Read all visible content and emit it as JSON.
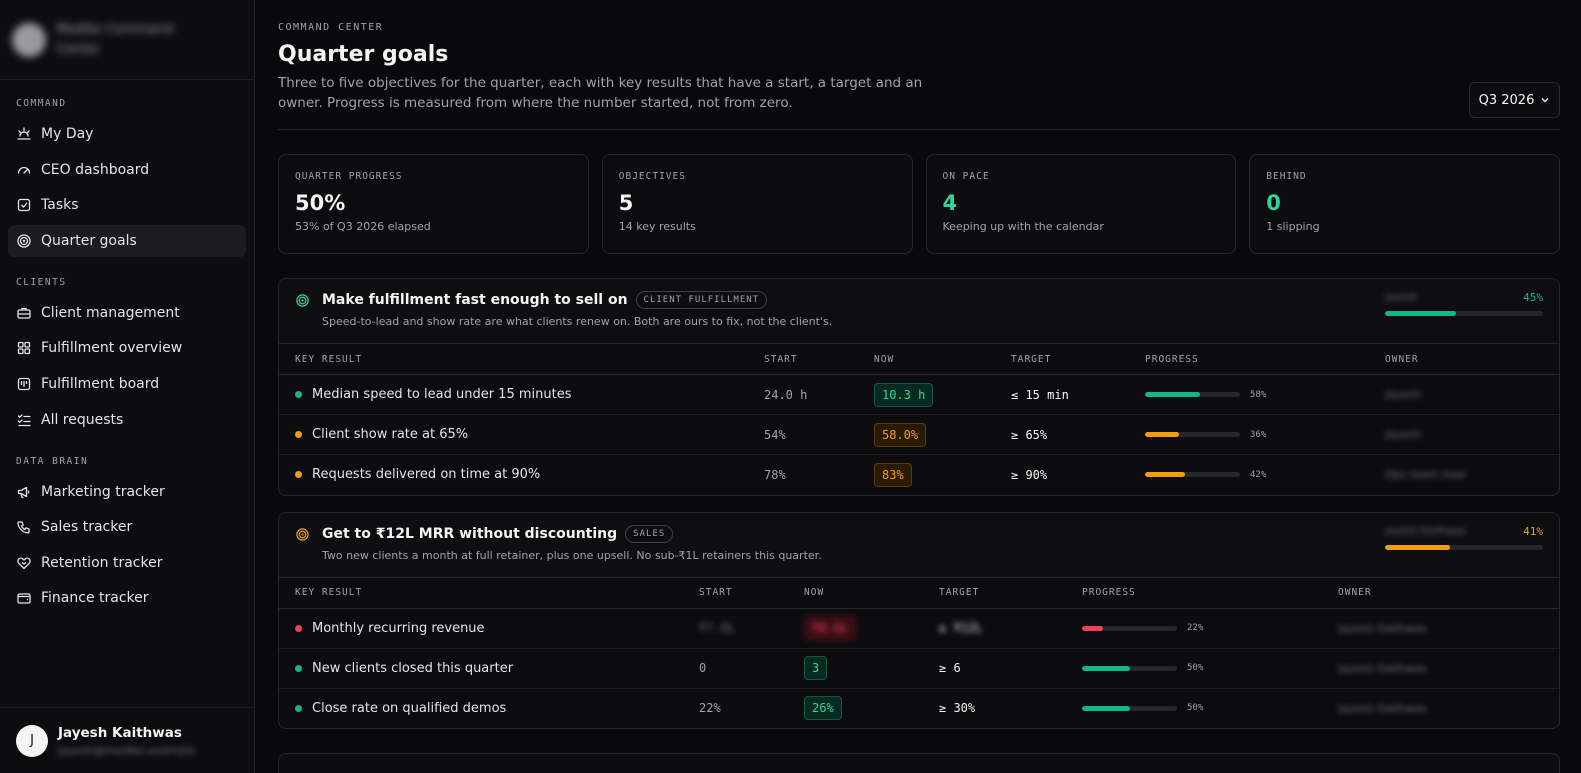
{
  "colors": {
    "green": "#10b981",
    "amber": "#f59e0b",
    "red": "#f43f5e",
    "track": "#27272a"
  },
  "brand": {
    "name": "Mediko Command Center"
  },
  "sidebar": {
    "sections": [
      {
        "heading": "COMMAND",
        "items": [
          {
            "label": "My Day",
            "icon": "sun-horizon-icon"
          },
          {
            "label": "CEO dashboard",
            "icon": "gauge-icon"
          },
          {
            "label": "Tasks",
            "icon": "check-square-icon"
          },
          {
            "label": "Quarter goals",
            "icon": "target-icon",
            "active": true
          }
        ]
      },
      {
        "heading": "CLIENTS",
        "items": [
          {
            "label": "Client management",
            "icon": "briefcase-icon"
          },
          {
            "label": "Fulfillment overview",
            "icon": "grid-icon"
          },
          {
            "label": "Fulfillment board",
            "icon": "kanban-icon"
          },
          {
            "label": "All requests",
            "icon": "list-check-icon"
          }
        ]
      },
      {
        "heading": "DATA BRAIN",
        "items": [
          {
            "label": "Marketing tracker",
            "icon": "megaphone-icon"
          },
          {
            "label": "Sales tracker",
            "icon": "phone-icon"
          },
          {
            "label": "Retention tracker",
            "icon": "heart-handshake-icon"
          },
          {
            "label": "Finance tracker",
            "icon": "wallet-icon"
          }
        ]
      }
    ]
  },
  "user": {
    "initial": "J",
    "name": "Jayesh Kaithwas",
    "email": "jayesh@mediko.example"
  },
  "header": {
    "eyebrow": "COMMAND CENTER",
    "title": "Quarter goals",
    "description": "Three to five objectives for the quarter, each with key results that have a start, a target and an owner. Progress is measured from where the number started, not from zero.",
    "quarter": "Q3 2026"
  },
  "stats": [
    {
      "label": "QUARTER PROGRESS",
      "value": "50%",
      "sub": "53% of Q3 2026 elapsed",
      "green": false
    },
    {
      "label": "OBJECTIVES",
      "value": "5",
      "sub": "14 key results",
      "green": false
    },
    {
      "label": "ON PACE",
      "value": "4",
      "sub": "Keeping up with the calendar",
      "green": true
    },
    {
      "label": "BEHIND",
      "value": "0",
      "sub": "1 slipping",
      "green": true
    }
  ],
  "objectives": [
    {
      "title": "Make fulfillment fast enough to sell on",
      "tag": "CLIENT FULFILLMENT",
      "description": "Speed-to-lead and show rate are what clients renew on. Both are ours to fix, not the client's.",
      "owner": "Jayesh",
      "progress": 45,
      "progress_label": "45%",
      "color": "green",
      "icon_color": "#34d399",
      "columns": [
        "KEY RESULT",
        "START",
        "NOW",
        "TARGET",
        "PROGRESS",
        "OWNER"
      ],
      "col_widths": [
        "485px",
        "110px",
        "137px",
        "134px",
        "240px",
        "auto"
      ],
      "key_results": [
        {
          "name": "Median speed to lead under 15 minutes",
          "status": "green",
          "start": "24.0 h",
          "now": "10.3 h",
          "target": "≤ 15 min",
          "progress": 58,
          "progress_label": "58%",
          "owner": "Jayesh"
        },
        {
          "name": "Client show rate at 65%",
          "status": "amber",
          "start": "54%",
          "now": "58.0%",
          "target": "≥ 65%",
          "progress": 36,
          "progress_label": "36%",
          "owner": "Jayesh"
        },
        {
          "name": "Requests delivered on time at 90%",
          "status": "amber",
          "start": "78%",
          "now": "83%",
          "target": "≥ 90%",
          "progress": 42,
          "progress_label": "42%",
          "owner": "Ops team lead"
        }
      ]
    },
    {
      "title": "Get to ₹12L MRR without discounting",
      "tag": "SALES",
      "description": "Two new clients a month at full retainer, plus one upsell. No sub-₹1L retainers this quarter.",
      "owner": "Jayesh Kaithwas",
      "progress": 41,
      "progress_label": "41%",
      "color": "amber",
      "icon_color": "#f59e0b",
      "columns": [
        "KEY RESULT",
        "START",
        "NOW",
        "TARGET",
        "PROGRESS",
        "OWNER"
      ],
      "col_widths": [
        "420px",
        "105px",
        "135px",
        "143px",
        "256px",
        "auto"
      ],
      "key_results": [
        {
          "name": "Monthly recurring revenue",
          "status": "red",
          "start": "₹7.8L",
          "now": "₹8.6L",
          "target": "≥ ₹12L",
          "progress": 22,
          "progress_label": "22%",
          "owner": "Jayesh Kaithwas",
          "blur": true
        },
        {
          "name": "New clients closed this quarter",
          "status": "green",
          "start": "0",
          "now": "3",
          "target": "≥ 6",
          "progress": 50,
          "progress_label": "50%",
          "owner": "Jayesh Kaithwas"
        },
        {
          "name": "Close rate on qualified demos",
          "status": "green",
          "start": "22%",
          "now": "26%",
          "target": "≥ 30%",
          "progress": 50,
          "progress_label": "50%",
          "owner": "Jayesh Kaithwas"
        }
      ]
    }
  ]
}
